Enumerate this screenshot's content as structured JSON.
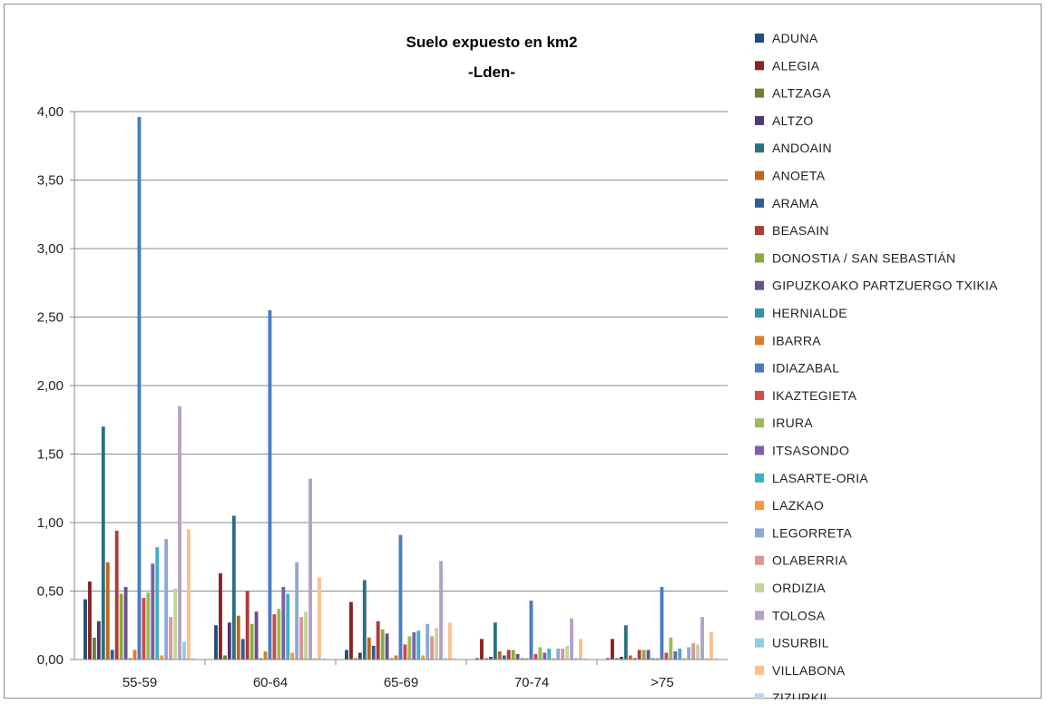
{
  "chart_data": {
    "type": "bar",
    "title": "Suelo expuesto en km2",
    "subtitle": "-Lden-",
    "xlabel": "",
    "ylabel": "",
    "ylim": [
      0,
      4
    ],
    "yticks": [
      "0,00",
      "0,50",
      "1,00",
      "1,50",
      "2,00",
      "2,50",
      "3,00",
      "3,50",
      "4,00"
    ],
    "grid": true,
    "legend_position": "right",
    "categories": [
      "55-59",
      "60-64",
      "65-69",
      "70-74",
      ">75"
    ],
    "series": [
      {
        "name": "ADUNA",
        "color": "#1f4e79",
        "values": [
          0.44,
          0.25,
          0.07,
          0.01,
          0.01
        ]
      },
      {
        "name": "ALEGIA",
        "color": "#8b2323",
        "values": [
          0.57,
          0.63,
          0.42,
          0.15,
          0.15
        ]
      },
      {
        "name": "ALTZAGA",
        "color": "#6b7f3a",
        "values": [
          0.16,
          0.03,
          0.01,
          0.01,
          0.01
        ]
      },
      {
        "name": "ALTZO",
        "color": "#4e3a6e",
        "values": [
          0.28,
          0.27,
          0.05,
          0.02,
          0.02
        ]
      },
      {
        "name": "ANDOAIN",
        "color": "#2a7080",
        "values": [
          1.7,
          1.05,
          0.58,
          0.27,
          0.25
        ]
      },
      {
        "name": "ANOETA",
        "color": "#c0651c",
        "values": [
          0.71,
          0.32,
          0.16,
          0.06,
          0.03
        ]
      },
      {
        "name": "ARAMA",
        "color": "#2e5c9a",
        "values": [
          0.07,
          0.15,
          0.1,
          0.03,
          0.01
        ]
      },
      {
        "name": "BEASAIN",
        "color": "#b03a37",
        "values": [
          0.94,
          0.5,
          0.28,
          0.07,
          0.07
        ]
      },
      {
        "name": "DONOSTIA / SAN SEBASTIÁN",
        "color": "#8aab3f",
        "values": [
          0.48,
          0.26,
          0.22,
          0.07,
          0.07
        ]
      },
      {
        "name": "GIPUZKOAKO PARTZUERGO TXIKIA",
        "color": "#6a4f8e",
        "values": [
          0.53,
          0.35,
          0.19,
          0.04,
          0.07
        ]
      },
      {
        "name": "HERNIALDE",
        "color": "#2f96a8",
        "values": [
          0.01,
          0.01,
          0.01,
          0.01,
          0.01
        ]
      },
      {
        "name": "IBARRA",
        "color": "#e07b2a",
        "values": [
          0.07,
          0.06,
          0.03,
          0.01,
          0.01
        ]
      },
      {
        "name": "IDIAZABAL",
        "color": "#4a7cc4",
        "values": [
          3.96,
          2.55,
          0.91,
          0.43,
          0.53
        ]
      },
      {
        "name": "IKAZTEGIETA",
        "color": "#cc4c48",
        "values": [
          0.45,
          0.33,
          0.11,
          0.04,
          0.05
        ]
      },
      {
        "name": "IRURA",
        "color": "#9bbb59",
        "values": [
          0.49,
          0.37,
          0.17,
          0.09,
          0.16
        ]
      },
      {
        "name": "ITSASONDO",
        "color": "#7d5fa6",
        "values": [
          0.7,
          0.53,
          0.2,
          0.05,
          0.06
        ]
      },
      {
        "name": "LASARTE-ORIA",
        "color": "#3fb0c7",
        "values": [
          0.82,
          0.48,
          0.21,
          0.08,
          0.08
        ]
      },
      {
        "name": "LAZKAO",
        "color": "#f39a3c",
        "values": [
          0.03,
          0.05,
          0.03,
          0.01,
          0.01
        ]
      },
      {
        "name": "LEGORRETA",
        "color": "#8ea8d6",
        "values": [
          0.88,
          0.71,
          0.26,
          0.08,
          0.09
        ]
      },
      {
        "name": "OLABERRIA",
        "color": "#d99694",
        "values": [
          0.31,
          0.31,
          0.17,
          0.08,
          0.12
        ]
      },
      {
        "name": "ORDIZIA",
        "color": "#c3d69b",
        "values": [
          0.52,
          0.35,
          0.23,
          0.1,
          0.11
        ]
      },
      {
        "name": "TOLOSA",
        "color": "#b3a2c7",
        "values": [
          1.85,
          1.32,
          0.72,
          0.3,
          0.31
        ]
      },
      {
        "name": "USURBIL",
        "color": "#93cddd",
        "values": [
          0.13,
          0.01,
          0.01,
          0.01,
          0.01
        ]
      },
      {
        "name": "VILLABONA",
        "color": "#fac090",
        "values": [
          0.95,
          0.6,
          0.27,
          0.15,
          0.2
        ]
      },
      {
        "name": "ZIZURKIL",
        "color": "#c6d4ea",
        "values": [
          0.01,
          0.01,
          0.01,
          0.01,
          0.01
        ]
      }
    ]
  }
}
